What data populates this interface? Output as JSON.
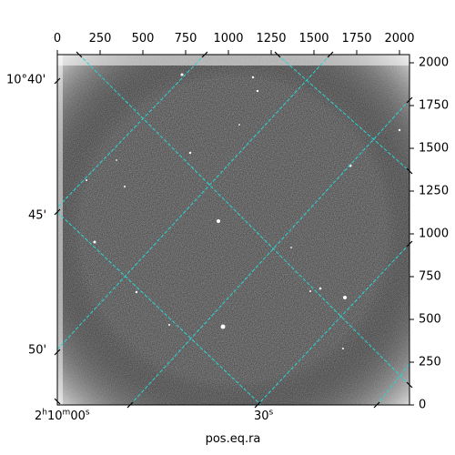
{
  "axes": {
    "top_ticks": [
      "0",
      "250",
      "500",
      "750",
      "1000",
      "1250",
      "1500",
      "1750",
      "2000"
    ],
    "right_ticks": [
      "0",
      "250",
      "500",
      "750",
      "1000",
      "1250",
      "1500",
      "1750",
      "2000"
    ],
    "left_ticks": [
      "10°40'",
      "45'",
      "50'"
    ],
    "bottom_ticks": [
      {
        "h": "2",
        "hu": "h",
        "m": "10",
        "mu": "m",
        "s": "00",
        "su": "s"
      },
      {
        "s": "30",
        "su": "s"
      }
    ],
    "xlabel": "pos.eq.ra"
  },
  "colors": {
    "grid": "#2ad4d4",
    "background_image": "#4a4a4a"
  }
}
